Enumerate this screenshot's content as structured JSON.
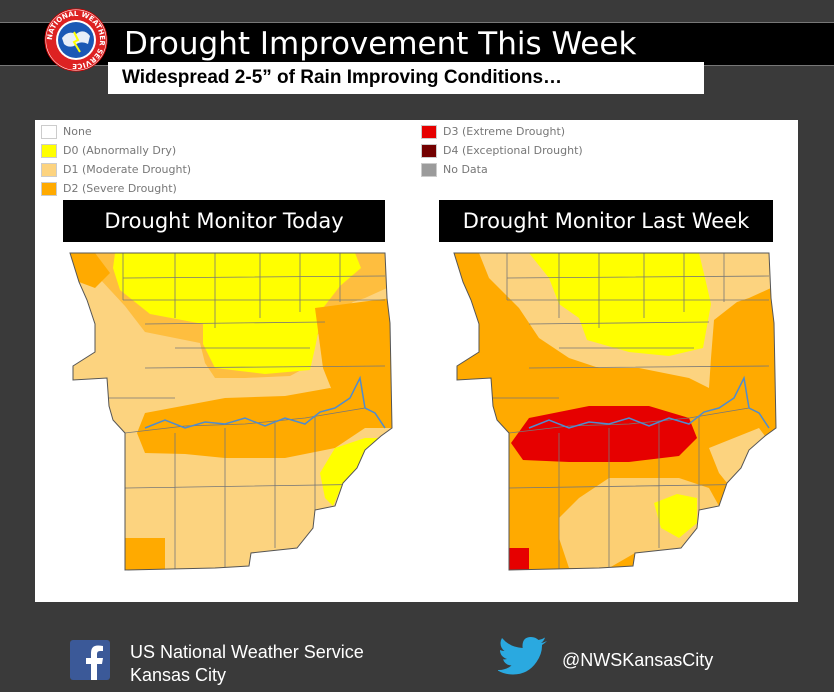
{
  "header": {
    "title": "Drought Improvement This Week",
    "subtitle": "Widespread 2-5” of Rain Improving Conditions…",
    "logo_text": "NATIONAL WEATHER SERVICE"
  },
  "legend": [
    {
      "label": "None",
      "color": "#ffffff"
    },
    {
      "label": "D0 (Abnormally Dry)",
      "color": "#ffff00"
    },
    {
      "label": "D1 (Moderate Drought)",
      "color": "#fcd37f"
    },
    {
      "label": "D2 (Severe Drought)",
      "color": "#ffaa00"
    },
    {
      "label": "D3 (Extreme Drought)",
      "color": "#e60000"
    },
    {
      "label": "D4 (Exceptional Drought)",
      "color": "#730000"
    },
    {
      "label": "No Data",
      "color": "#9b9b9b"
    }
  ],
  "maps": {
    "today_label": "Drought Monitor Today",
    "last_week_label": "Drought Monitor Last Week"
  },
  "footer": {
    "org_line1": "US National Weather Service",
    "org_line2": "Kansas City",
    "twitter_handle": "@NWSKansasCity",
    "facebook_icon": "facebook-icon",
    "twitter_icon": "twitter-icon"
  }
}
